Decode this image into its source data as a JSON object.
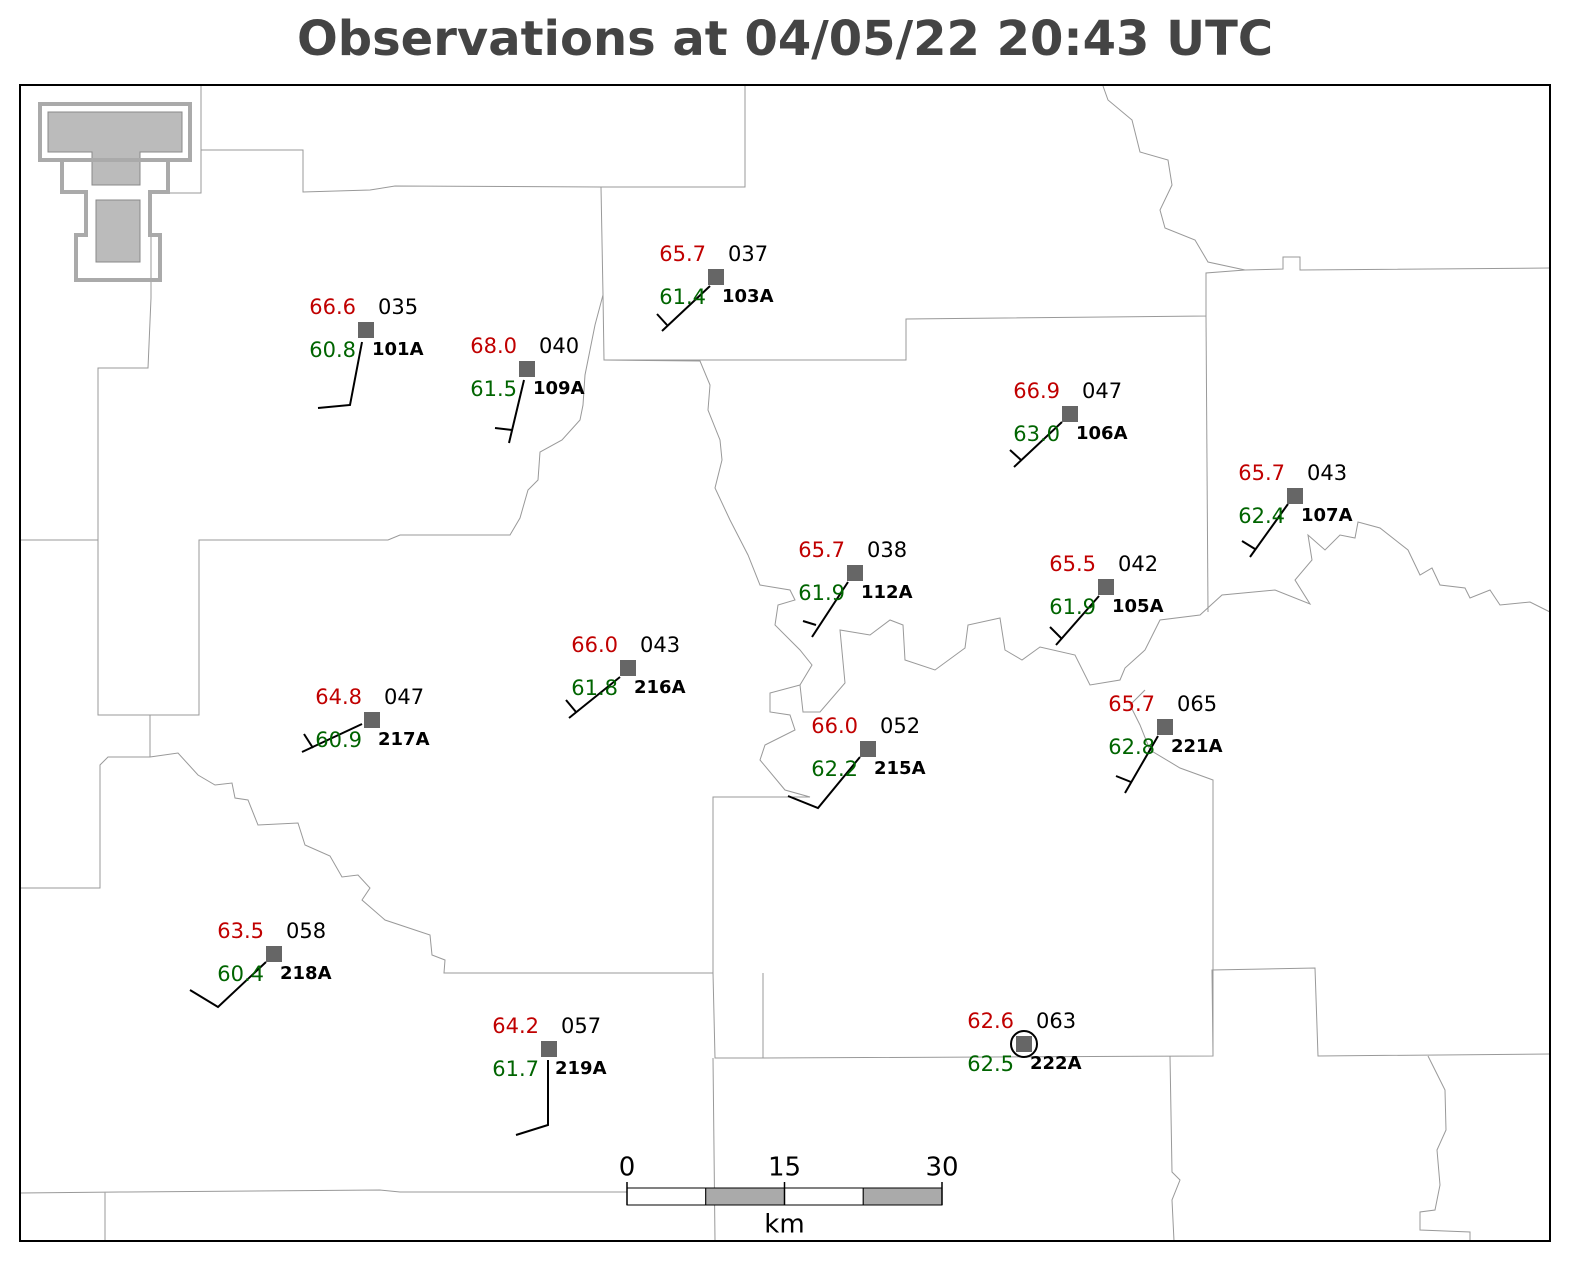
{
  "title": "Observations at 04/05/22 20:43 UTC",
  "stations": [
    {
      "id": "101A",
      "temperature": "66.6",
      "dewpoint": "60.8",
      "pressure": "035"
    },
    {
      "id": "109A",
      "temperature": "68.0",
      "dewpoint": "61.5",
      "pressure": "040"
    },
    {
      "id": "103A",
      "temperature": "65.7",
      "dewpoint": "61.4",
      "pressure": "037"
    },
    {
      "id": "106A",
      "temperature": "66.9",
      "dewpoint": "63.0",
      "pressure": "047"
    },
    {
      "id": "107A",
      "temperature": "65.7",
      "dewpoint": "62.4",
      "pressure": "043"
    },
    {
      "id": "112A",
      "temperature": "65.7",
      "dewpoint": "61.9",
      "pressure": "038"
    },
    {
      "id": "105A",
      "temperature": "65.5",
      "dewpoint": "61.9",
      "pressure": "042"
    },
    {
      "id": "216A",
      "temperature": "66.0",
      "dewpoint": "61.8",
      "pressure": "043"
    },
    {
      "id": "217A",
      "temperature": "64.8",
      "dewpoint": "60.9",
      "pressure": "047"
    },
    {
      "id": "215A",
      "temperature": "66.0",
      "dewpoint": "62.2",
      "pressure": "052"
    },
    {
      "id": "221A",
      "temperature": "65.7",
      "dewpoint": "62.8",
      "pressure": "065"
    },
    {
      "id": "218A",
      "temperature": "63.5",
      "dewpoint": "60.4",
      "pressure": "058"
    },
    {
      "id": "219A",
      "temperature": "64.2",
      "dewpoint": "61.7",
      "pressure": "057"
    },
    {
      "id": "222A",
      "temperature": "62.6",
      "dewpoint": "62.5",
      "pressure": "063"
    }
  ],
  "scale": {
    "ticks": [
      0,
      15,
      30
    ],
    "unit": "km"
  }
}
